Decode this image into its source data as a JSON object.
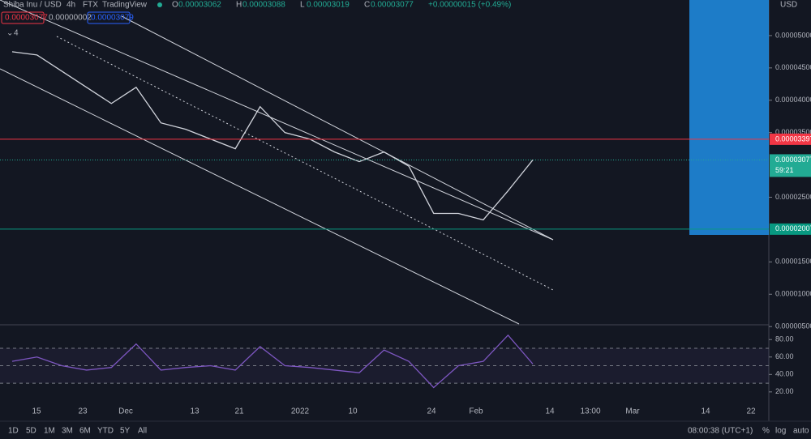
{
  "header": {
    "symbol": "Shiba Inu / USD",
    "interval": "4h",
    "exchange": "FTX",
    "source": "TradingView",
    "ohlc": [
      {
        "key": "O",
        "value": "0.00003062"
      },
      {
        "key": "H",
        "value": "0.00003088"
      },
      {
        "key": "L",
        "value": "0.00003019"
      },
      {
        "key": "C",
        "value": "0.00003077"
      }
    ],
    "change": "+0.00000015 (+0.49%)"
  },
  "order_panel": {
    "sell": "0.00003077",
    "spread": "0.00000002",
    "buy": "0.00003079",
    "indicator_count": "4"
  },
  "currency": "USD",
  "chart_data": [
    {
      "type": "line",
      "color": "#d1d4dc",
      "values": [
        4.75e-05,
        4.7e-05,
        4.45e-05,
        4.2e-05,
        3.95e-05,
        4.2e-05,
        3.65e-05,
        3.55e-05,
        3.4e-05,
        3.25e-05,
        3.9e-05,
        3.5e-05,
        3.4e-05,
        3.2e-05,
        3.05e-05,
        3.2e-05,
        2.98e-05,
        2.25e-05,
        2.25e-05,
        2.15e-05,
        2.6e-05,
        3.077e-05
      ],
      "ylim": [
        5.4e-06,
        5.55e-05
      ],
      "yticks": [
        {
          "value": 5e-05,
          "label": "0.00005000"
        },
        {
          "value": 4.5e-05,
          "label": "0.00004500"
        },
        {
          "value": 4e-05,
          "label": "0.00004000"
        },
        {
          "value": 3.5e-05,
          "label": "0.00003500"
        },
        {
          "value": 2.5e-05,
          "label": "0.00002500"
        },
        {
          "value": 1.5e-05,
          "label": "0.00001500"
        },
        {
          "value": 1e-05,
          "label": "0.00001000"
        },
        {
          "value": 5e-06,
          "label": "0.00000500"
        }
      ],
      "price_lines": [
        {
          "value": 3.397e-05,
          "label": "0.00003397",
          "color": "#f23645"
        },
        {
          "value": 3.077e-05,
          "label": "0.00003077",
          "color": "#22ab94"
        },
        {
          "value": 2.007e-05,
          "label": "0.00002007",
          "color": "#089981"
        }
      ],
      "countdown": "59:21",
      "x_labels": [
        "15",
        "23",
        "Dec",
        "13",
        "21",
        "2022",
        "10",
        "24",
        "Feb",
        "14",
        "13:00",
        "Mar",
        "14",
        "22"
      ]
    },
    {
      "type": "line",
      "color": "#7e57c2",
      "values": [
        55,
        60,
        50,
        45,
        48,
        75,
        45,
        48,
        50,
        45,
        72,
        50,
        48,
        45,
        42,
        68,
        55,
        25,
        50,
        55,
        85,
        52
      ],
      "ylim": [
        5,
        96
      ],
      "yticks": [
        {
          "value": 80,
          "label": "80.00"
        },
        {
          "value": 60,
          "label": "60.00"
        },
        {
          "value": 40,
          "label": "40.00"
        },
        {
          "value": 20,
          "label": "20.00"
        }
      ],
      "levels": [
        30,
        50,
        70
      ]
    }
  ],
  "toolbar": {
    "ranges": [
      "1D",
      "5D",
      "1M",
      "3M",
      "6M",
      "YTD",
      "5Y",
      "All"
    ],
    "clock": "08:00:38 (UTC+1)",
    "options": [
      "%",
      "log",
      "auto"
    ]
  }
}
